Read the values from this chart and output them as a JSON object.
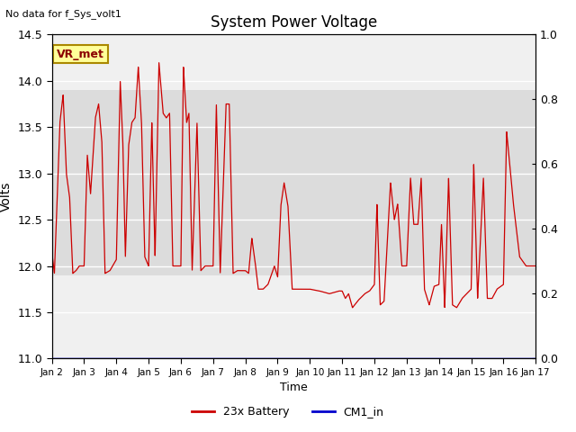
{
  "title": "System Power Voltage",
  "top_left_text": "No data for f_Sys_volt1",
  "ylabel_left": "Volts",
  "xlabel": "Time",
  "ylim_left": [
    11.0,
    14.5
  ],
  "ylim_right": [
    0.0,
    1.0
  ],
  "yticks_left": [
    11.0,
    11.5,
    12.0,
    12.5,
    13.0,
    13.5,
    14.0,
    14.5
  ],
  "yticks_right": [
    0.0,
    0.2,
    0.4,
    0.6,
    0.8,
    1.0
  ],
  "xtick_labels": [
    "Jan 2",
    "Jan 3",
    "Jan 4",
    "Jan 5",
    "Jan 6",
    "Jan 7",
    "Jan 8",
    "Jan 9",
    "Jan 10",
    "Jan 11",
    "Jan 12",
    "Jan 13",
    "Jan 14",
    "Jan 15",
    "Jan 16",
    "Jan 17"
  ],
  "bg_color": "#f0f0f0",
  "band_color": "#dcdcdc",
  "band_ylim": [
    11.9,
    13.9
  ],
  "line_color_battery": "#cc0000",
  "line_color_cm1": "#0000cc",
  "annotation_text": "VR_met",
  "annotation_bg": "#ffff99",
  "annotation_border": "#aa8800",
  "legend_labels": [
    "23x Battery",
    "CM1_in"
  ],
  "legend_colors": [
    "#cc0000",
    "#0000cc"
  ],
  "keypoints": [
    [
      0.0,
      12.15
    ],
    [
      0.08,
      11.92
    ],
    [
      0.25,
      13.55
    ],
    [
      0.35,
      13.85
    ],
    [
      0.45,
      13.0
    ],
    [
      0.55,
      12.75
    ],
    [
      0.65,
      11.92
    ],
    [
      0.75,
      11.95
    ],
    [
      0.85,
      12.0
    ],
    [
      1.0,
      12.0
    ],
    [
      1.1,
      13.2
    ],
    [
      1.2,
      12.78
    ],
    [
      1.35,
      13.6
    ],
    [
      1.45,
      13.75
    ],
    [
      1.55,
      13.35
    ],
    [
      1.65,
      11.92
    ],
    [
      1.8,
      11.95
    ],
    [
      2.0,
      12.07
    ],
    [
      2.12,
      14.0
    ],
    [
      2.2,
      13.35
    ],
    [
      2.28,
      12.1
    ],
    [
      2.38,
      13.3
    ],
    [
      2.48,
      13.55
    ],
    [
      2.58,
      13.6
    ],
    [
      2.68,
      14.15
    ],
    [
      2.78,
      13.55
    ],
    [
      2.88,
      12.1
    ],
    [
      3.0,
      12.0
    ],
    [
      3.1,
      13.55
    ],
    [
      3.2,
      12.1
    ],
    [
      3.32,
      14.2
    ],
    [
      3.45,
      13.65
    ],
    [
      3.55,
      13.6
    ],
    [
      3.65,
      13.65
    ],
    [
      3.75,
      12.0
    ],
    [
      3.85,
      12.0
    ],
    [
      4.0,
      12.0
    ],
    [
      4.08,
      14.15
    ],
    [
      4.18,
      13.55
    ],
    [
      4.25,
      13.65
    ],
    [
      4.35,
      11.95
    ],
    [
      4.5,
      13.55
    ],
    [
      4.62,
      11.95
    ],
    [
      4.75,
      12.0
    ],
    [
      5.0,
      12.0
    ],
    [
      5.1,
      13.75
    ],
    [
      5.22,
      11.92
    ],
    [
      5.4,
      13.75
    ],
    [
      5.5,
      13.75
    ],
    [
      5.62,
      11.92
    ],
    [
      5.75,
      11.95
    ],
    [
      6.0,
      11.95
    ],
    [
      6.1,
      11.92
    ],
    [
      6.2,
      12.3
    ],
    [
      6.3,
      12.05
    ],
    [
      6.4,
      11.75
    ],
    [
      6.55,
      11.75
    ],
    [
      6.7,
      11.8
    ],
    [
      6.9,
      12.0
    ],
    [
      7.0,
      11.88
    ],
    [
      7.1,
      12.65
    ],
    [
      7.2,
      12.9
    ],
    [
      7.32,
      12.65
    ],
    [
      7.45,
      11.75
    ],
    [
      7.65,
      11.75
    ],
    [
      7.85,
      11.75
    ],
    [
      8.0,
      11.75
    ],
    [
      8.3,
      11.73
    ],
    [
      8.6,
      11.7
    ],
    [
      8.9,
      11.73
    ],
    [
      9.0,
      11.73
    ],
    [
      9.1,
      11.65
    ],
    [
      9.2,
      11.7
    ],
    [
      9.32,
      11.55
    ],
    [
      9.5,
      11.63
    ],
    [
      9.7,
      11.7
    ],
    [
      9.85,
      11.73
    ],
    [
      10.0,
      11.8
    ],
    [
      10.08,
      12.67
    ],
    [
      10.18,
      11.58
    ],
    [
      10.3,
      11.62
    ],
    [
      10.5,
      12.9
    ],
    [
      10.62,
      12.5
    ],
    [
      10.72,
      12.67
    ],
    [
      10.85,
      12.0
    ],
    [
      11.0,
      12.0
    ],
    [
      11.12,
      12.95
    ],
    [
      11.22,
      12.45
    ],
    [
      11.35,
      12.45
    ],
    [
      11.45,
      12.95
    ],
    [
      11.55,
      11.75
    ],
    [
      11.7,
      11.58
    ],
    [
      11.85,
      11.78
    ],
    [
      12.0,
      11.8
    ],
    [
      12.08,
      12.45
    ],
    [
      12.18,
      11.55
    ],
    [
      12.3,
      12.95
    ],
    [
      12.42,
      11.58
    ],
    [
      12.55,
      11.55
    ],
    [
      12.72,
      11.65
    ],
    [
      13.0,
      11.75
    ],
    [
      13.08,
      13.1
    ],
    [
      13.2,
      11.65
    ],
    [
      13.38,
      12.95
    ],
    [
      13.5,
      11.65
    ],
    [
      13.65,
      11.65
    ],
    [
      13.8,
      11.75
    ],
    [
      14.0,
      11.8
    ],
    [
      14.1,
      13.45
    ],
    [
      14.3,
      12.7
    ],
    [
      14.5,
      12.1
    ],
    [
      14.7,
      12.0
    ],
    [
      14.85,
      12.0
    ],
    [
      15.0,
      12.0
    ]
  ]
}
